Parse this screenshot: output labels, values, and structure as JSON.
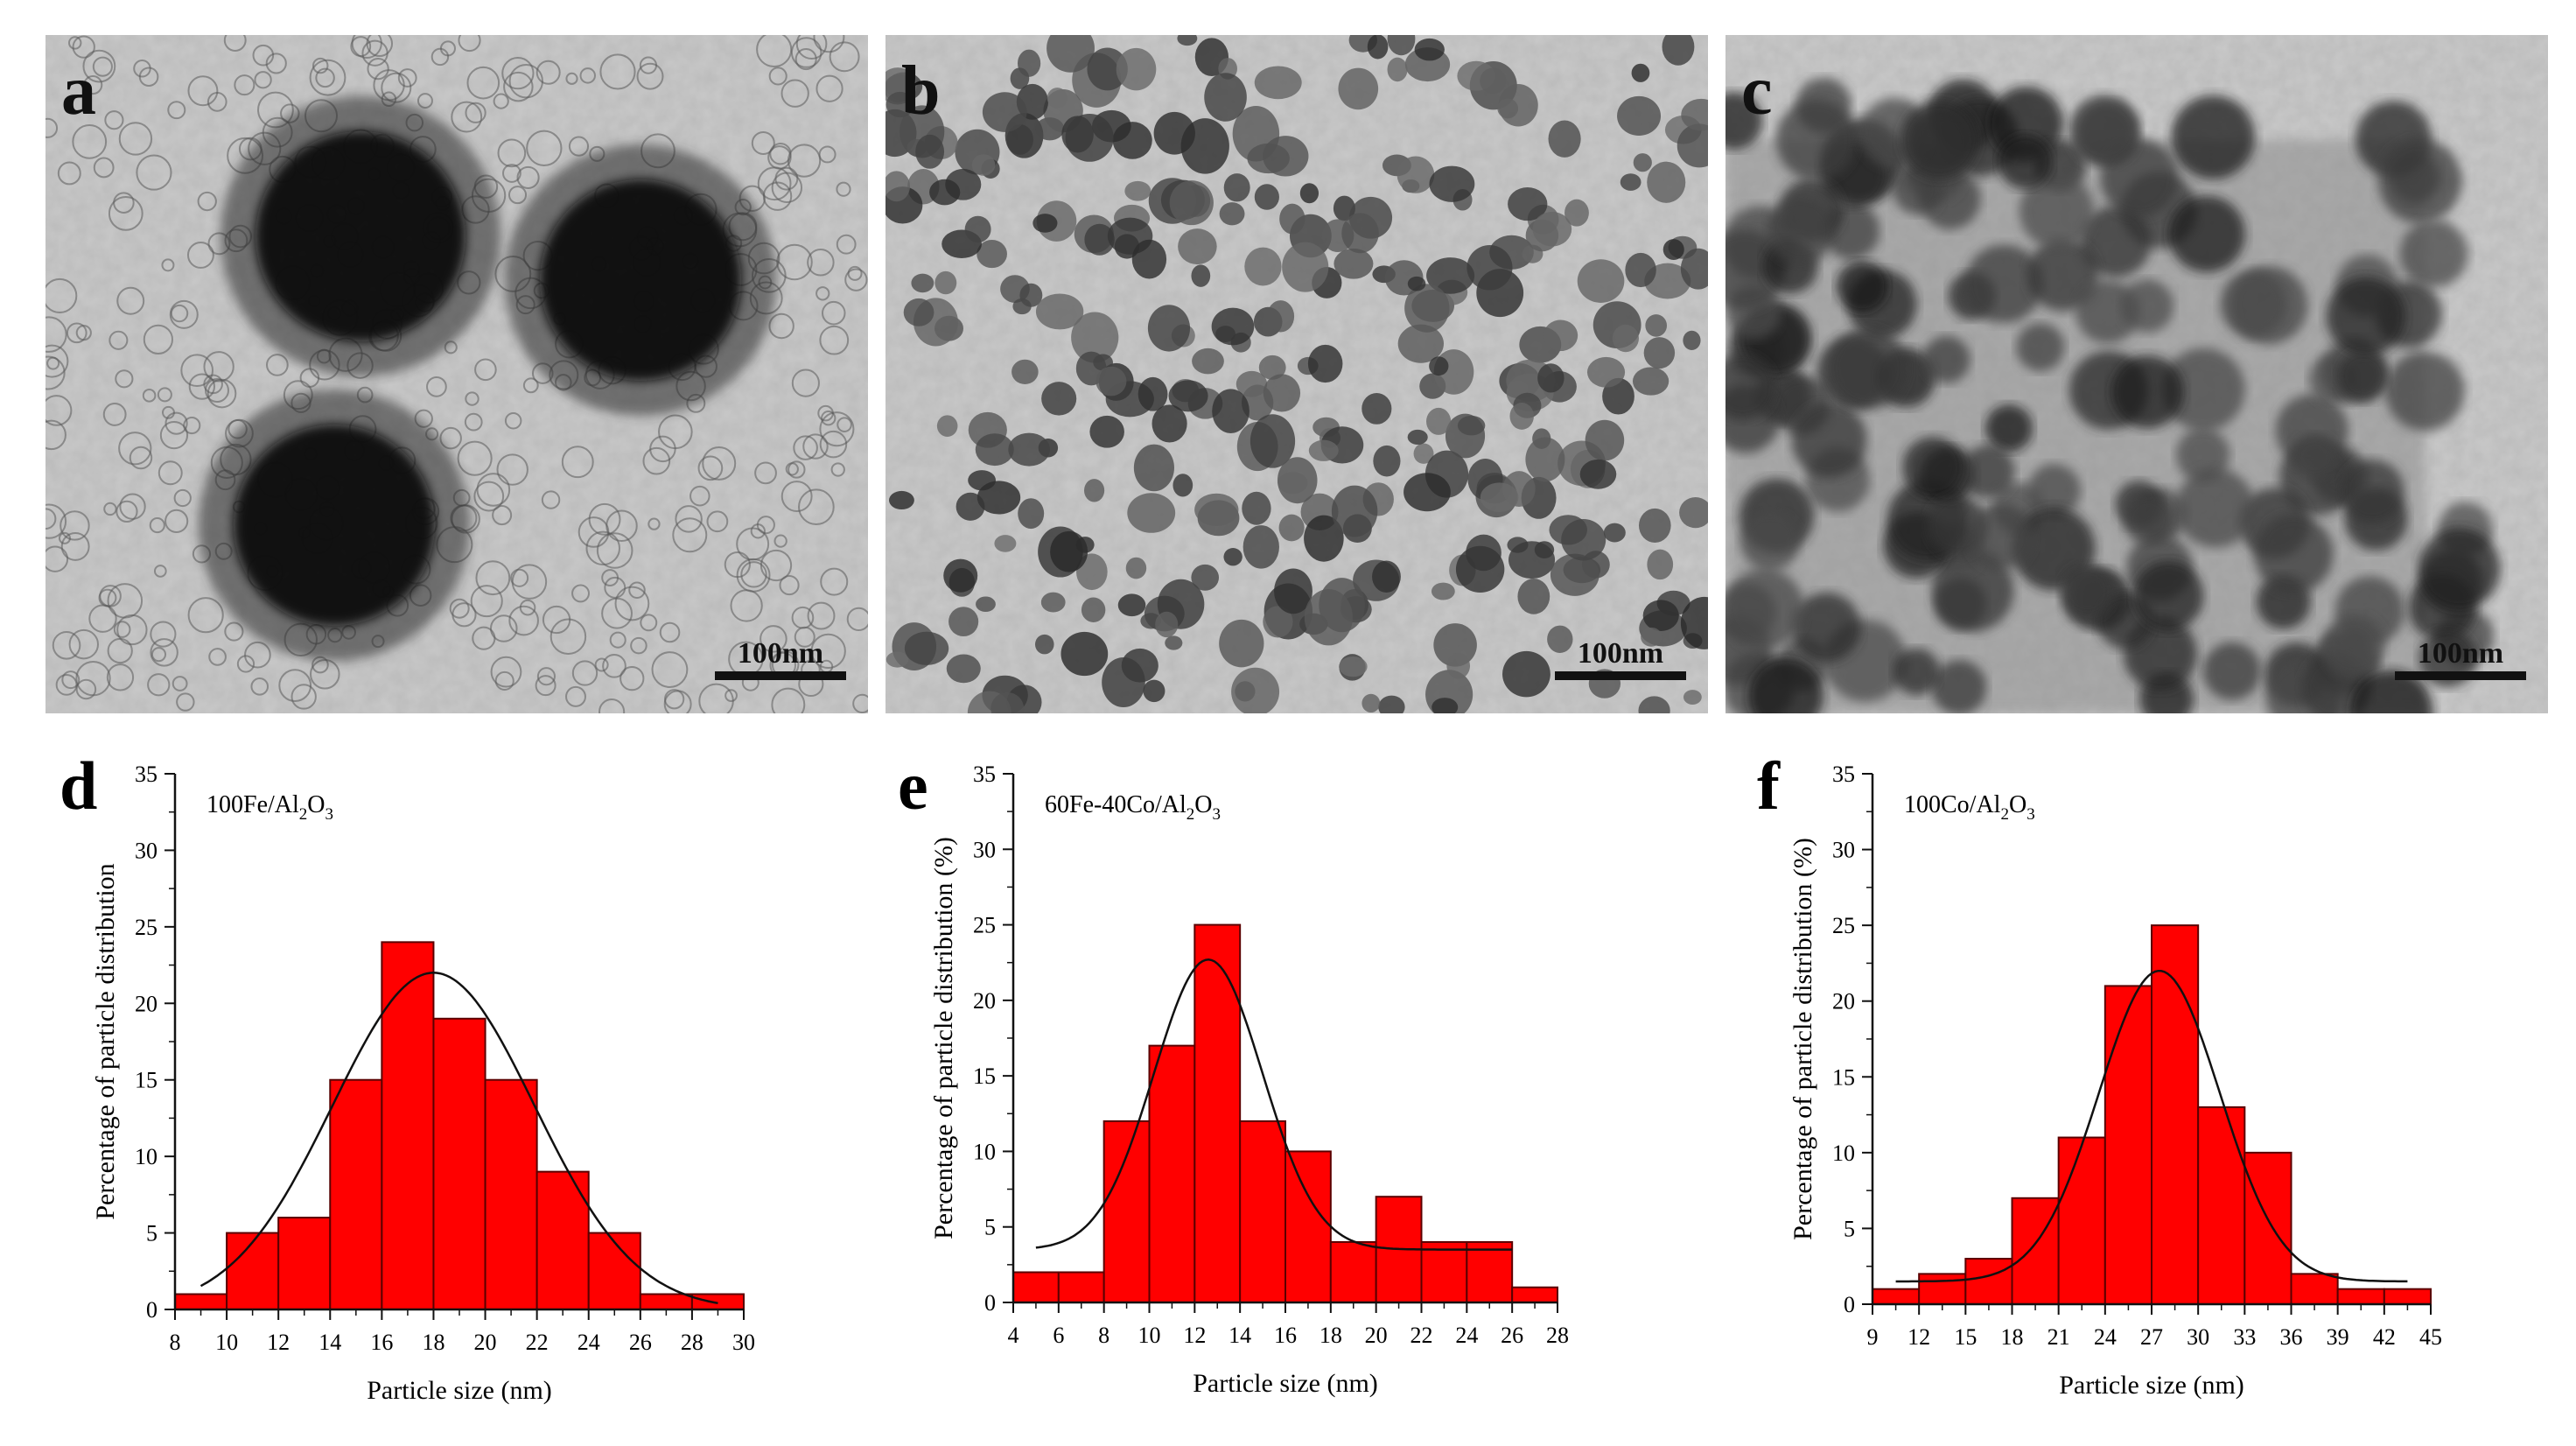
{
  "colors": {
    "bar_fill": "#ff0000",
    "bar_stroke": "#5a0000",
    "fit_line": "#111111",
    "axis": "#111111",
    "tem_background": "#c9c9c9"
  },
  "tem_panels": [
    {
      "letter": "a",
      "scale_bar": "100nm"
    },
    {
      "letter": "b",
      "scale_bar": "100nm"
    },
    {
      "letter": "c",
      "scale_bar": "100nm"
    }
  ],
  "chart_data": [
    {
      "type": "bar",
      "panel_letter": "d",
      "sample_label": {
        "base": "100Fe/Al",
        "sub1": "2",
        "mid": "O",
        "sub2": "3"
      },
      "xlabel": "Particle size (nm)",
      "ylabel": "Percentage of particle distribution",
      "xlim": [
        8,
        30
      ],
      "ylim": [
        0,
        35
      ],
      "xticks": [
        8,
        10,
        12,
        14,
        16,
        18,
        20,
        22,
        24,
        26,
        28,
        30
      ],
      "yticks": [
        0,
        5,
        10,
        15,
        20,
        25,
        30,
        35
      ],
      "bin_width": 2,
      "bins": [
        {
          "x": 9,
          "value": 1
        },
        {
          "x": 11,
          "value": 5
        },
        {
          "x": 13,
          "value": 6
        },
        {
          "x": 15,
          "value": 15
        },
        {
          "x": 17,
          "value": 24
        },
        {
          "x": 19,
          "value": 19
        },
        {
          "x": 21,
          "value": 15
        },
        {
          "x": 23,
          "value": 9
        },
        {
          "x": 25,
          "value": 5
        },
        {
          "x": 27,
          "value": 1
        },
        {
          "x": 29,
          "value": 1
        }
      ],
      "fit": {
        "type": "gaussian",
        "center": 18,
        "peak": 22,
        "sigma": 3.9,
        "baseline": 0,
        "x_range": [
          9,
          29
        ]
      }
    },
    {
      "type": "bar",
      "panel_letter": "e",
      "sample_label": {
        "base": "60Fe-40Co/Al",
        "sub1": "2",
        "mid": "O",
        "sub2": "3"
      },
      "xlabel": "Particle size (nm)",
      "ylabel": "Percentage of particle distribution (%)",
      "xlim": [
        4,
        28
      ],
      "ylim": [
        0,
        35
      ],
      "xticks": [
        4,
        6,
        8,
        10,
        12,
        14,
        16,
        18,
        20,
        22,
        24,
        26,
        28
      ],
      "yticks": [
        0,
        5,
        10,
        15,
        20,
        25,
        30,
        35
      ],
      "bin_width": 2,
      "bins": [
        {
          "x": 5,
          "value": 2
        },
        {
          "x": 7,
          "value": 2
        },
        {
          "x": 9,
          "value": 12
        },
        {
          "x": 11,
          "value": 17
        },
        {
          "x": 13,
          "value": 25
        },
        {
          "x": 15,
          "value": 12
        },
        {
          "x": 17,
          "value": 10
        },
        {
          "x": 19,
          "value": 4
        },
        {
          "x": 21,
          "value": 7
        },
        {
          "x": 23,
          "value": 4
        },
        {
          "x": 25,
          "value": 4
        },
        {
          "x": 27,
          "value": 1
        }
      ],
      "fit": {
        "type": "gaussian",
        "center": 12.6,
        "peak": 22.7,
        "sigma": 2.4,
        "baseline": 3.5,
        "x_range": [
          5,
          26
        ]
      }
    },
    {
      "type": "bar",
      "panel_letter": "f",
      "sample_label": {
        "base": "100Co/Al",
        "sub1": "2",
        "mid": "O",
        "sub2": "3"
      },
      "xlabel": "Particle size (nm)",
      "ylabel": "Percentage of particle distribution (%)",
      "xlim": [
        9,
        45
      ],
      "ylim": [
        0,
        35
      ],
      "xticks": [
        9,
        12,
        15,
        18,
        21,
        24,
        27,
        30,
        33,
        36,
        39,
        42,
        45
      ],
      "yticks": [
        0,
        5,
        10,
        15,
        20,
        25,
        30,
        35
      ],
      "bin_width": 3,
      "bins": [
        {
          "x": 10.5,
          "value": 1
        },
        {
          "x": 13.5,
          "value": 2
        },
        {
          "x": 16.5,
          "value": 3
        },
        {
          "x": 19.5,
          "value": 7
        },
        {
          "x": 22.5,
          "value": 11
        },
        {
          "x": 25.5,
          "value": 21
        },
        {
          "x": 28.5,
          "value": 25
        },
        {
          "x": 31.5,
          "value": 13
        },
        {
          "x": 34.5,
          "value": 10
        },
        {
          "x": 37.5,
          "value": 2
        },
        {
          "x": 40.5,
          "value": 1
        },
        {
          "x": 43.5,
          "value": 1
        }
      ],
      "fit": {
        "type": "gaussian",
        "center": 27.5,
        "peak": 22,
        "sigma": 3.9,
        "baseline": 1.5,
        "x_range": [
          10.5,
          43.5
        ]
      }
    }
  ]
}
